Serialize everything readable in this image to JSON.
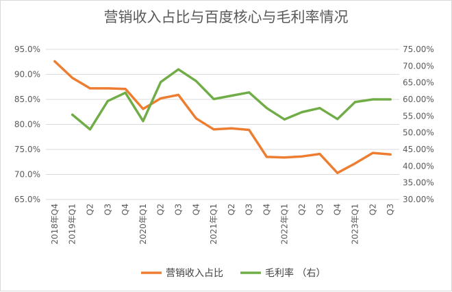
{
  "chart_data": {
    "type": "line",
    "title": "营销收入占比与百度核心与毛利率情况",
    "categories": [
      "2018年Q4",
      "2019年Q1",
      "Q2",
      "Q3",
      "Q4",
      "2020年Q1",
      "Q2",
      "Q3",
      "Q4",
      "2021年Q1",
      "Q2",
      "Q3",
      "Q4",
      "2022年Q1",
      "Q2",
      "Q3",
      "Q4",
      "2023年Q1",
      "Q2",
      "Q3"
    ],
    "y_left": {
      "ticks": [
        "65.0%",
        "70.0%",
        "75.0%",
        "80.0%",
        "85.0%",
        "90.0%",
        "95.0%"
      ],
      "ylim": [
        65,
        95
      ]
    },
    "y_right": {
      "ticks": [
        "30.00%",
        "35.00%",
        "40.00%",
        "45.00%",
        "50.00%",
        "55.00%",
        "60.00%",
        "65.00%",
        "70.00%",
        "75.00%"
      ],
      "ylim": [
        30,
        75
      ]
    },
    "series": [
      {
        "name": "营销收入占比",
        "axis": "left",
        "color": "#ed7d31",
        "values": [
          92.6,
          89.3,
          87.2,
          87.2,
          87.1,
          83.1,
          85.2,
          85.9,
          81.2,
          79.0,
          79.2,
          78.9,
          73.5,
          73.4,
          73.6,
          74.1,
          70.3,
          72.2,
          74.3,
          74.0
        ]
      },
      {
        "name": "毛利率 （右）",
        "axis": "right",
        "color": "#70ad47",
        "values": [
          null,
          55.4,
          51.0,
          59.5,
          62.0,
          53.5,
          65.2,
          69.0,
          65.5,
          60.1,
          61.1,
          62.1,
          57.4,
          54.0,
          56.2,
          57.4,
          54.1,
          59.2,
          60.0,
          60.0
        ]
      }
    ],
    "grid": true,
    "legend": "bottom-center"
  }
}
